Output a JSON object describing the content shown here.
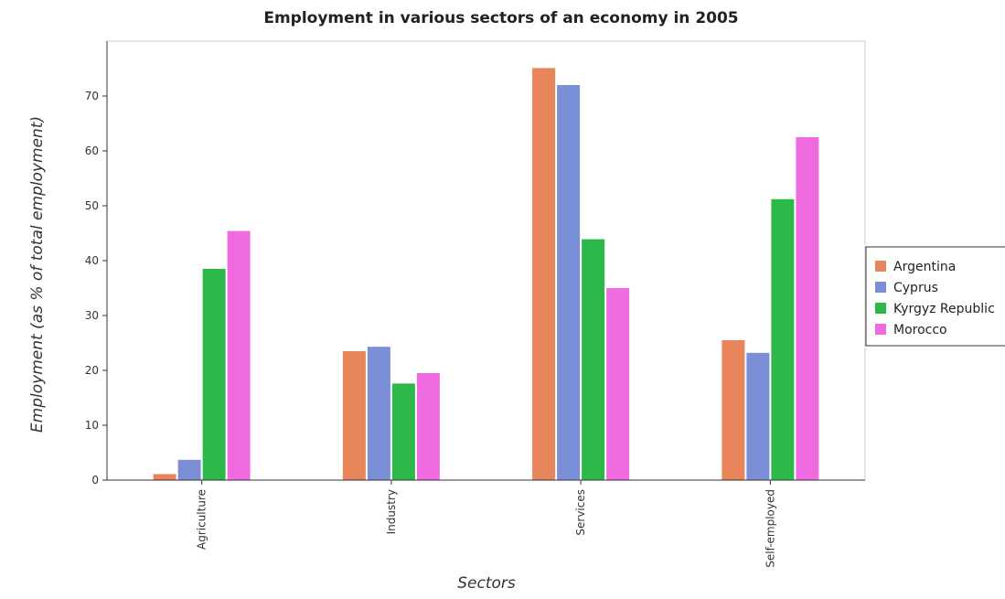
{
  "chart_data": {
    "type": "bar",
    "title": "Employment in various sectors of an economy in 2005",
    "xlabel": "Sectors",
    "ylabel": "Employment (as % of total employment)",
    "categories": [
      "Agriculture",
      "Industry",
      "Services",
      "Self-employed"
    ],
    "ylim": [
      0,
      80
    ],
    "yticks": [
      0,
      10,
      20,
      30,
      40,
      50,
      60,
      70
    ],
    "grid": false,
    "legend_position": "right",
    "series": [
      {
        "name": "Argentina",
        "color": "#e8855a",
        "values": [
          1.1,
          23.5,
          75.1,
          25.5
        ]
      },
      {
        "name": "Cyprus",
        "color": "#7b8fd6",
        "values": [
          3.7,
          24.3,
          72.0,
          23.2
        ]
      },
      {
        "name": "Kyrgyz Republic",
        "color": "#2db84a",
        "values": [
          38.5,
          17.6,
          43.9,
          51.2
        ]
      },
      {
        "name": "Morocco",
        "color": "#f06ae0",
        "values": [
          45.4,
          19.5,
          35.0,
          62.5
        ]
      }
    ]
  }
}
